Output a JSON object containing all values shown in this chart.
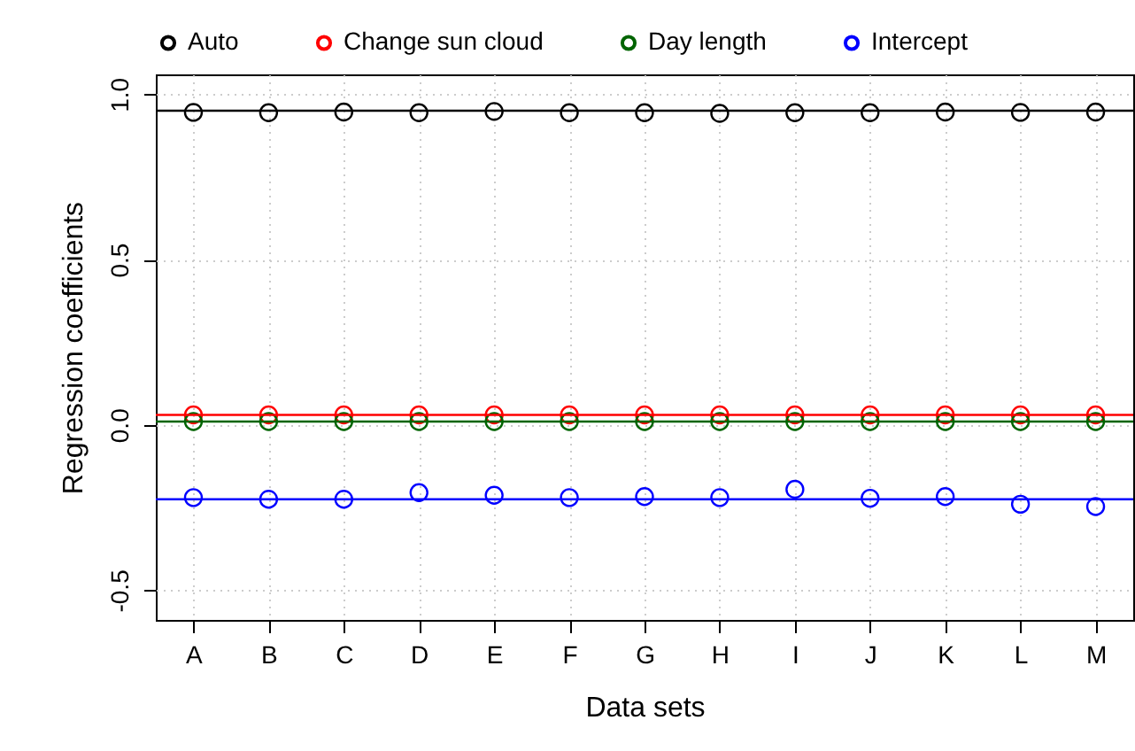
{
  "chart_data": {
    "type": "scatter",
    "xlabel": "Data sets",
    "ylabel": "Regression coefficients",
    "categories": [
      "A",
      "B",
      "C",
      "D",
      "E",
      "F",
      "G",
      "H",
      "I",
      "J",
      "K",
      "L",
      "M"
    ],
    "series": [
      {
        "name": "Auto",
        "color": "#000000",
        "values": [
          0.945,
          0.944,
          0.946,
          0.944,
          0.948,
          0.944,
          0.944,
          0.942,
          0.944,
          0.944,
          0.946,
          0.945,
          0.946
        ]
      },
      {
        "name": "Change sun cloud",
        "color": "#ff0000",
        "values": [
          0.03,
          0.03,
          0.03,
          0.03,
          0.03,
          0.03,
          0.03,
          0.03,
          0.03,
          0.03,
          0.03,
          0.03,
          0.03
        ]
      },
      {
        "name": "Day length",
        "color": "#006400",
        "values": [
          0.01,
          0.01,
          0.01,
          0.01,
          0.01,
          0.01,
          0.01,
          0.01,
          0.01,
          0.01,
          0.01,
          0.01,
          0.01
        ]
      },
      {
        "name": "Intercept",
        "color": "#0000ff",
        "values": [
          -0.22,
          -0.225,
          -0.225,
          -0.205,
          -0.213,
          -0.22,
          -0.217,
          -0.22,
          -0.195,
          -0.222,
          -0.217,
          -0.24,
          -0.247
        ]
      }
    ],
    "ref_lines": [
      {
        "axis": "y",
        "value": 0.95,
        "color": "#000000"
      },
      {
        "axis": "y",
        "value": 0.03,
        "color": "#ff0000"
      },
      {
        "axis": "y",
        "value": 0.01,
        "color": "#006400"
      },
      {
        "axis": "y",
        "value": -0.225,
        "color": "#0000ff"
      }
    ],
    "ylim": [
      -0.59,
      1.06
    ],
    "yticks": [
      -0.5,
      {
        "value": 0,
        "label": "0.0"
      },
      0.5,
      {
        "value": 1,
        "label": "1.0"
      }
    ],
    "grid": true,
    "legend": "top",
    "marker": "circle"
  }
}
